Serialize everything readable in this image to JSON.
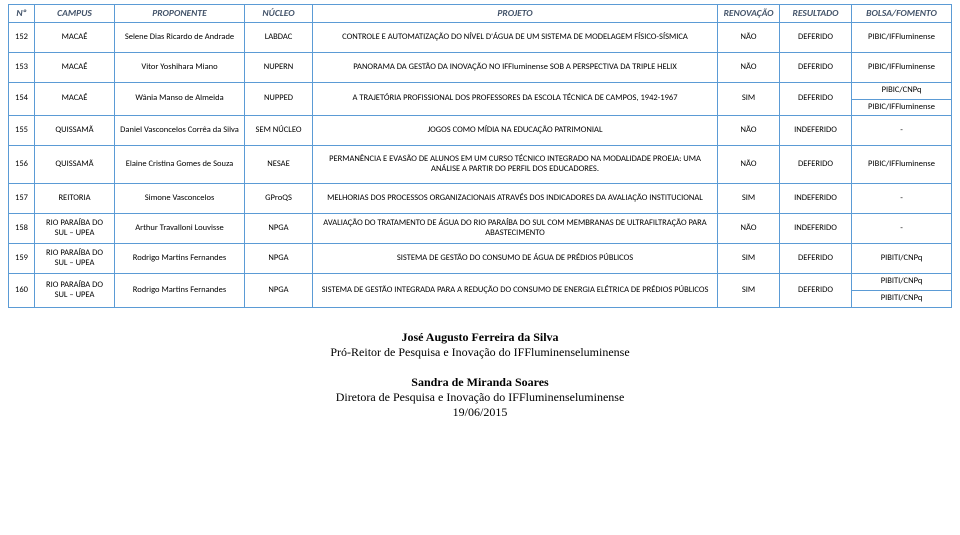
{
  "header": {
    "n": "Nº",
    "campus": "CAMPUS",
    "proponente": "PROPONENTE",
    "nucleo": "NÚCLEO",
    "projeto": "PROJETO",
    "renovacao": "RENOVAÇÃO",
    "resultado": "RESULTADO",
    "bolsa": "BOLSA/FOMENTO"
  },
  "rows": [
    {
      "n": "152",
      "campus": "MACAÉ",
      "prop": "Selene Dias Ricardo de Andrade",
      "nuc": "LABDAC",
      "proj": "CONTROLE E AUTOMATIZAÇÃO DO NÍVEL D'ÁGUA DE UM SISTEMA DE MODELAGEM FÍSICO-SÍSMICA",
      "ren": "NÃO",
      "res": "DEFERIDO",
      "bf": "PIBIC/IFFluminense"
    },
    {
      "n": "153",
      "campus": "MACAÉ",
      "prop": "Vitor Yoshihara Miano",
      "nuc": "NUPERN",
      "proj": "PANORAMA DA GESTÃO DA INOVAÇÃO NO IFFluminense SOB A PERSPECTIVA DA TRIPLE HELIX",
      "ren": "NÃO",
      "res": "DEFERIDO",
      "bf": "PIBIC/IFFluminense"
    },
    {
      "n": "154",
      "campus": "MACAÉ",
      "prop": "Wânia Manso de Almeida",
      "nuc": "NUPPED",
      "proj": "A TRAJETÓRIA PROFISSIONAL DOS PROFESSORES DA ESCOLA TÉCNICA DE CAMPOS, 1942-1967",
      "ren": "SIM",
      "res": "DEFERIDO",
      "bf": "PIBIC/CNPq",
      "bf2": "PIBIC/IFFluminense"
    },
    {
      "n": "155",
      "campus": "QUISSAMÃ",
      "prop": "Daniel Vasconcelos Corrêa da Silva",
      "nuc": "SEM NÚCLEO",
      "proj": "JOGOS COMO MÍDIA NA EDUCAÇÃO PATRIMONIAL",
      "ren": "NÃO",
      "res": "INDEFERIDO",
      "bf": "-"
    },
    {
      "n": "156",
      "campus": "QUISSAMÃ",
      "prop": "Elaine Cristina Gomes de Souza",
      "nuc": "NESAE",
      "proj": "PERMANÊNCIA E EVASÃO DE ALUNOS EM UM CURSO TÉCNICO INTEGRADO NA MODALIDADE PROEJA: UMA ANÁLISE A PARTIR DO PERFIL DOS EDUCADORES.",
      "ren": "NÃO",
      "res": "DEFERIDO",
      "bf": "PIBIC/IFFluminense"
    },
    {
      "n": "157",
      "campus": "REITORIA",
      "prop": "Simone Vasconcelos",
      "nuc": "GProQS",
      "proj": "MELHORIAS DOS PROCESSOS ORGANIZACIONAIS ATRAVÉS DOS INDICADORES DA AVALIAÇÃO INSTITUCIONAL",
      "ren": "SIM",
      "res": "INDEFERIDO",
      "bf": "-"
    },
    {
      "n": "158",
      "campus": "RIO PARAÍBA DO SUL – UPEA",
      "prop": "Arthur Travalloni Louvisse",
      "nuc": "NPGA",
      "proj": "AVALIAÇÃO DO TRATAMENTO DE ÁGUA DO RIO PARAÍBA DO SUL COM MEMBRANAS DE ULTRAFILTRAÇÃO PARA ABASTECIMENTO",
      "ren": "NÃO",
      "res": "INDEFERIDO",
      "bf": "-"
    },
    {
      "n": "159",
      "campus": "RIO PARAÍBA DO SUL – UPEA",
      "prop": "Rodrigo Martins Fernandes",
      "nuc": "NPGA",
      "proj": "SISTEMA DE GESTÃO DO CONSUMO DE ÁGUA DE PRÉDIOS PÚBLICOS",
      "ren": "SIM",
      "res": "DEFERIDO",
      "bf": "PIBITI/CNPq"
    },
    {
      "n": "160",
      "campus": "RIO PARAÍBA DO SUL – UPEA",
      "prop": "Rodrigo Martins Fernandes",
      "nuc": "NPGA",
      "proj": "SISTEMA DE GESTÃO INTEGRADA PARA A REDUÇÃO DO CONSUMO DE ENERGIA ELÉTRICA DE PRÉDIOS PÚBLICOS",
      "ren": "SIM",
      "res": "DEFERIDO",
      "bf": "PIBITI/CNPq",
      "bf2": "PIBITI/CNPq"
    }
  ],
  "footer": {
    "name1": "José Augusto Ferreira da Silva",
    "title1": "Pró-Reitor de Pesquisa e Inovação do IFFluminenseluminense",
    "name2": "Sandra de Miranda Soares",
    "title2": "Diretora de Pesquisa e Inovação do IFFluminenseluminense",
    "date": "19/06/2015"
  },
  "colors": {
    "border": "#5b9bd5",
    "header_text": "#44546a",
    "background": "#ffffff"
  }
}
